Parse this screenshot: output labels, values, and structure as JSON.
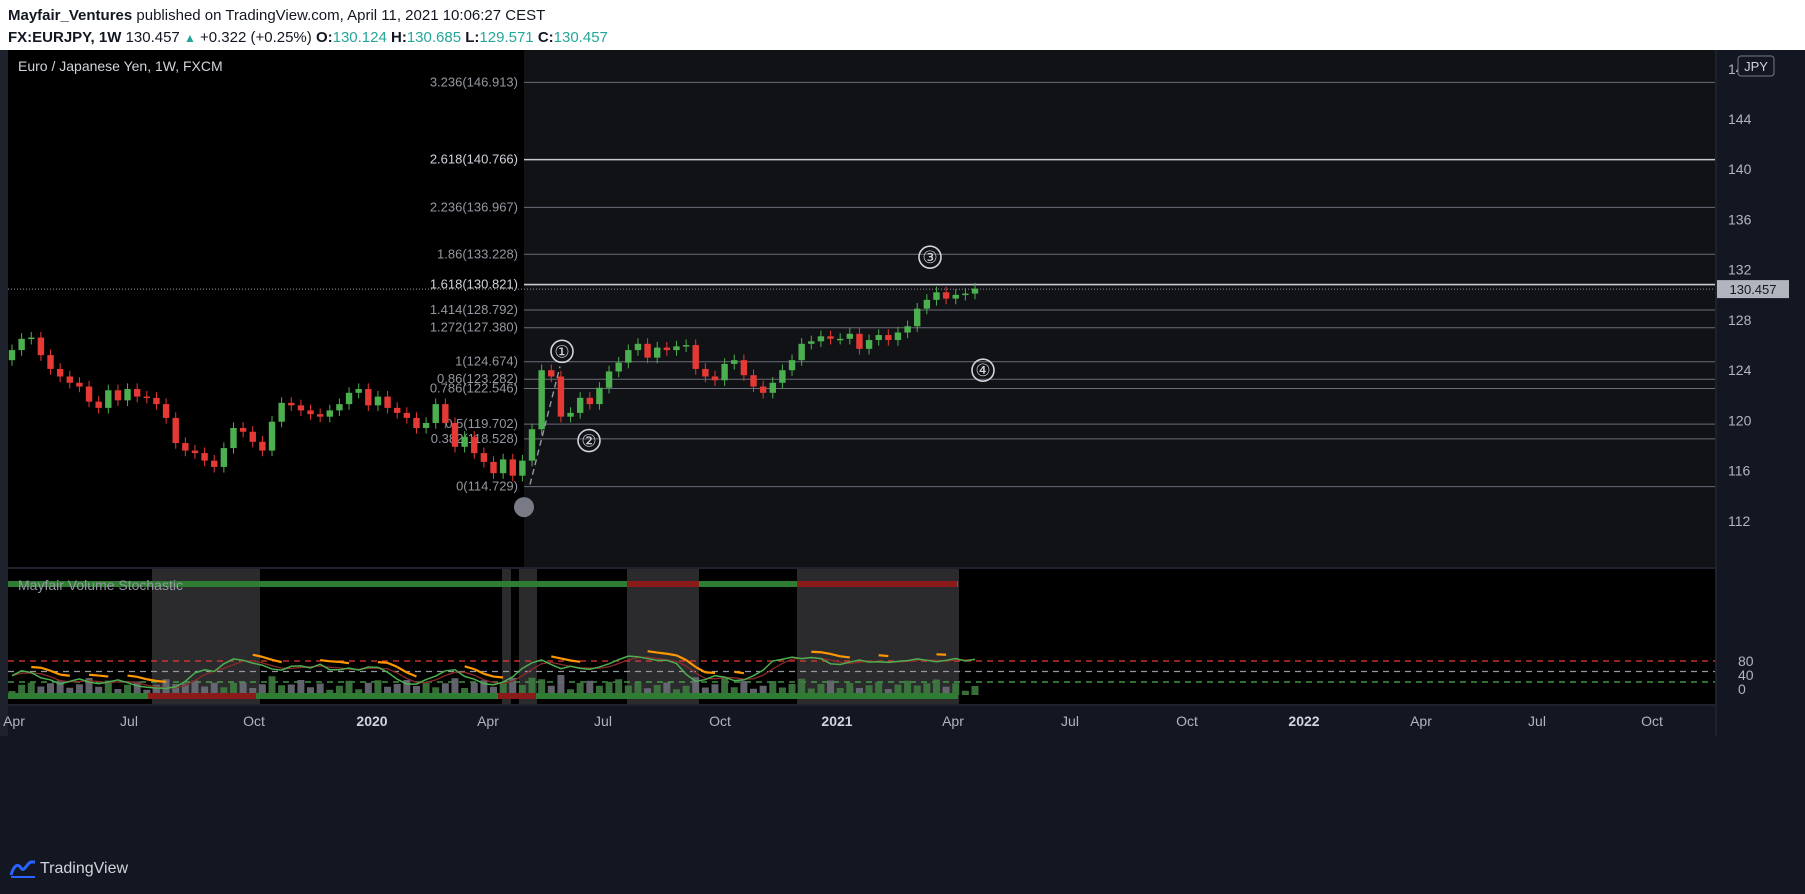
{
  "header": {
    "publisher": "Mayfair_Ventures",
    "published_text": "published on TradingView.com, April 11, 2021 10:06:27 CEST",
    "symbol": "FX:EURJPY",
    "interval": "1W",
    "last": "130.457",
    "change": "+0.322 (+0.25%)",
    "o_label": "O:",
    "o": "130.124",
    "h_label": "H:",
    "h": "130.685",
    "l_label": "L:",
    "l": "129.571",
    "c_label": "C:",
    "c": "130.457"
  },
  "footer": {
    "brand": "TradingView"
  },
  "colors": {
    "up": "#26a69a",
    "bull_candle": "#4caf50",
    "bear_candle": "#e53935",
    "fib_line": "#b2b5be",
    "stoch_k": "#4caf50",
    "stoch_d": "#ff9800"
  },
  "chart_data": [
    {
      "type": "candlestick",
      "title": "Euro / Japanese Yen, 1W, FXCM",
      "currency_badge": "JPY",
      "ylim": [
        109,
        149
      ],
      "y_ticks": [
        112,
        116,
        120,
        124,
        128,
        132,
        136,
        140,
        144,
        148
      ],
      "x_ticks": [
        "Apr",
        "Jul",
        "Oct",
        "2020",
        "Apr",
        "Jul",
        "Oct",
        "2021",
        "Apr",
        "Jul",
        "Oct",
        "2022",
        "Apr",
        "Jul",
        "Oct"
      ],
      "last_price": 130.457,
      "fib_levels": [
        {
          "label": "0(114.729)",
          "value": 114.729
        },
        {
          "label": "0.382(118.528)",
          "value": 118.528
        },
        {
          "label": "0.5(119.702)",
          "value": 119.702
        },
        {
          "label": "0.786(122.546)",
          "value": 122.546
        },
        {
          "label": "0.86(123.282)",
          "value": 123.282
        },
        {
          "label": "1(124.674)",
          "value": 124.674
        },
        {
          "label": "1.272(127.380)",
          "value": 127.38
        },
        {
          "label": "1.414(128.792)",
          "value": 128.792
        },
        {
          "label": "1.618(130.821)",
          "value": 130.821
        },
        {
          "label": "1.86(133.228)",
          "value": 133.228
        },
        {
          "label": "2.236(136.967)",
          "value": 136.967
        },
        {
          "label": "2.618(140.766)",
          "value": 140.766
        },
        {
          "label": "3.236(146.913)",
          "value": 146.913
        }
      ],
      "wave_labels": [
        {
          "label": "①",
          "price": 125.5
        },
        {
          "label": "②",
          "price": 118.4
        },
        {
          "label": "③",
          "price": 133.0
        },
        {
          "label": "④",
          "price": 124.0
        }
      ],
      "closes": [
        125.6,
        126.5,
        126.6,
        125.2,
        124.1,
        123.5,
        123.0,
        122.7,
        121.5,
        121.0,
        122.4,
        121.6,
        122.5,
        121.9,
        121.8,
        121.3,
        120.2,
        118.2,
        117.6,
        117.4,
        116.8,
        116.3,
        117.8,
        119.4,
        119.1,
        118.3,
        117.6,
        119.9,
        121.4,
        121.2,
        120.8,
        120.5,
        120.3,
        120.8,
        121.3,
        122.2,
        122.5,
        121.2,
        121.9,
        121.0,
        120.6,
        120.2,
        119.4,
        119.8,
        121.3,
        119.8,
        117.9,
        118.7,
        117.4,
        116.7,
        115.8,
        116.9,
        115.6,
        116.8,
        119.3,
        124.0,
        123.5,
        120.3,
        120.6,
        121.8,
        121.3,
        122.6,
        123.9,
        124.6,
        125.6,
        126.1,
        125.0,
        125.8,
        125.6,
        125.9,
        126.0,
        124.1,
        123.5,
        123.2,
        124.5,
        124.8,
        123.6,
        122.7,
        122.2,
        123.0,
        124.0,
        124.8,
        126.1,
        126.3,
        126.7,
        126.5,
        126.5,
        126.9,
        125.7,
        126.4,
        126.8,
        126.4,
        127.0,
        127.5,
        128.9,
        129.6,
        130.2,
        129.7,
        130.0,
        130.1,
        130.5
      ]
    },
    {
      "type": "line",
      "title": "Mayfair Volume Stochastic",
      "ylim": [
        -10,
        110
      ],
      "y_ticks": [
        0,
        40,
        80
      ],
      "levels": [
        20,
        50,
        80
      ],
      "series": [
        {
          "name": "",
          "values": [
            38,
            52,
            47,
            32,
            26,
            14,
            22,
            29,
            20,
            15,
            20,
            26,
            18,
            9,
            5,
            3,
            2,
            6,
            22,
            46,
            55,
            50,
            72,
            86,
            82,
            74,
            68,
            57,
            54,
            65,
            66,
            60,
            71,
            55,
            55,
            60,
            54,
            63,
            62,
            48,
            28,
            14,
            14,
            27,
            37,
            52,
            55,
            36,
            28,
            15,
            12,
            20,
            35,
            59,
            75,
            83,
            70,
            58,
            65,
            59,
            56,
            63,
            72,
            84,
            94,
            92,
            87,
            82,
            82,
            73,
            42,
            22,
            27,
            38,
            34,
            24,
            26,
            38,
            54,
            80,
            85,
            91,
            87,
            90,
            87,
            72,
            70,
            77,
            83,
            77,
            78,
            76,
            79,
            81,
            86,
            82,
            78,
            82,
            87,
            80,
            85
          ]
        }
      ]
    }
  ]
}
